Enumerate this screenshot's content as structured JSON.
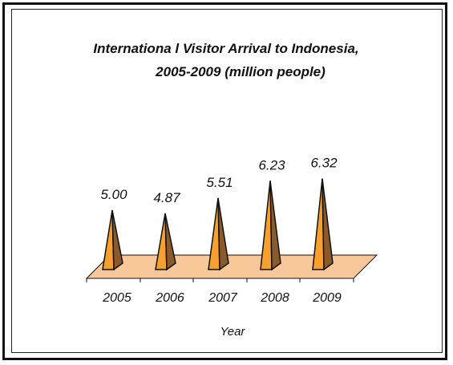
{
  "chart_data": {
    "type": "bar",
    "title_lines": [
      "Internationa l Visitor Arrival to Indonesia,",
      "2005-2009 (million people)"
    ],
    "xlabel": "Year",
    "ylabel": "",
    "categories": [
      "2005",
      "2006",
      "2007",
      "2008",
      "2009"
    ],
    "values": [
      5.0,
      4.87,
      5.51,
      6.23,
      6.32
    ],
    "value_labels": [
      "5.00",
      "4.87",
      "5.51",
      "6.23",
      "6.32"
    ],
    "ylim": [
      0,
      7
    ],
    "grid": false,
    "legend": "none",
    "style": "3d-pyramid",
    "colors": {
      "pyramid_front": "#f7a030",
      "pyramid_side": "#8a5a2b",
      "pyramid_outline": "#111111",
      "floor_fill": "#f8c89a",
      "floor_outline": "#111111"
    }
  }
}
